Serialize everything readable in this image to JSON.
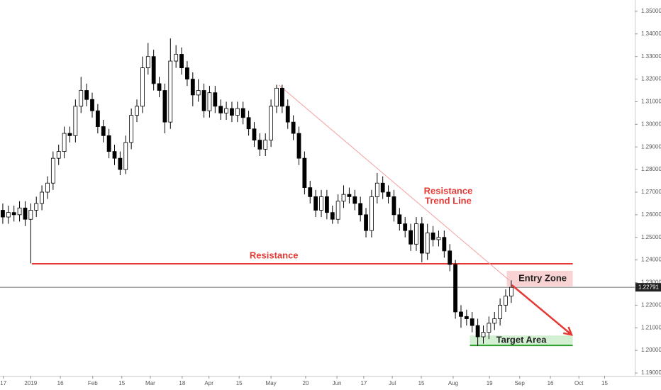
{
  "chart_data": {
    "type": "candlestick",
    "xlim": [
      0,
      113.6
    ],
    "ylim": [
      1.18875,
      1.355
    ],
    "xticks": [
      {
        "value": 0.6,
        "label": "17"
      },
      {
        "value": 5.5,
        "label": "2019"
      },
      {
        "value": 10.8,
        "label": "16"
      },
      {
        "value": 16.6,
        "label": "Feb"
      },
      {
        "value": 21.8,
        "label": "15"
      },
      {
        "value": 26.9,
        "label": "Mar"
      },
      {
        "value": 32.6,
        "label": "18"
      },
      {
        "value": 37.4,
        "label": "Apr"
      },
      {
        "value": 42.8,
        "label": "15"
      },
      {
        "value": 48.5,
        "label": "May"
      },
      {
        "value": 54.7,
        "label": "20"
      },
      {
        "value": 60.3,
        "label": "Jun"
      },
      {
        "value": 65.1,
        "label": "17"
      },
      {
        "value": 70.2,
        "label": "Jul"
      },
      {
        "value": 75.4,
        "label": "15"
      },
      {
        "value": 81.1,
        "label": "Aug"
      },
      {
        "value": 87.6,
        "label": "19"
      },
      {
        "value": 93.0,
        "label": "Sep"
      },
      {
        "value": 98.5,
        "label": "16"
      },
      {
        "value": 103.6,
        "label": "Oct"
      },
      {
        "value": 108.2,
        "label": "15"
      }
    ],
    "yticks": [
      {
        "value": 1.19,
        "label": "1.19000"
      },
      {
        "value": 1.2,
        "label": "1.20000"
      },
      {
        "value": 1.21,
        "label": "1.21000"
      },
      {
        "value": 1.22,
        "label": "1.22000"
      },
      {
        "value": 1.23,
        "label": "1.23000"
      },
      {
        "value": 1.24,
        "label": "1.24000"
      },
      {
        "value": 1.25,
        "label": "1.25000"
      },
      {
        "value": 1.26,
        "label": "1.26000"
      },
      {
        "value": 1.27,
        "label": "1.27000"
      },
      {
        "value": 1.28,
        "label": "1.28000"
      },
      {
        "value": 1.29,
        "label": "1.29000"
      },
      {
        "value": 1.3,
        "label": "1.30000"
      },
      {
        "value": 1.31,
        "label": "1.31000"
      },
      {
        "value": 1.32,
        "label": "1.32000"
      },
      {
        "value": 1.33,
        "label": "1.33000"
      },
      {
        "value": 1.34,
        "label": "1.34000"
      },
      {
        "value": 1.35,
        "label": "1.35000"
      }
    ],
    "up_color": "#ffffff",
    "down_color": "#000000",
    "x": [
      0.5,
      1.5,
      2.5,
      3.5,
      4.5,
      5.5,
      6.5,
      7.5,
      8.5,
      9.5,
      10.5,
      11.5,
      12.5,
      13.5,
      14.5,
      15.5,
      16.5,
      17.5,
      18.5,
      19.5,
      20.5,
      21.5,
      22.5,
      23.5,
      24.5,
      25.5,
      26.5,
      27.5,
      28.5,
      29.5,
      30.5,
      31.5,
      32.5,
      33.5,
      34.5,
      35.5,
      36.5,
      37.5,
      38.5,
      39.5,
      40.5,
      41.5,
      42.5,
      43.5,
      44.5,
      45.5,
      46.5,
      47.5,
      48.5,
      49.5,
      50.5,
      51.5,
      52.5,
      53.5,
      54.5,
      55.5,
      56.5,
      57.5,
      58.5,
      59.5,
      60.5,
      61.5,
      62.5,
      63.5,
      64.5,
      65.5,
      66.5,
      67.5,
      68.5,
      69.5,
      70.5,
      71.5,
      72.5,
      73.5,
      74.5,
      75.5,
      76.5,
      77.5,
      78.5,
      79.5,
      80.5,
      81.5,
      82.5,
      83.5,
      84.5,
      85.5,
      86.5,
      87.5,
      88.5,
      89.5,
      90.5,
      91.5
    ],
    "open": [
      1.262,
      1.259,
      1.261,
      1.26,
      1.263,
      1.258,
      1.262,
      1.265,
      1.27,
      1.274,
      1.285,
      1.288,
      1.296,
      1.295,
      1.308,
      1.315,
      1.311,
      1.306,
      1.299,
      1.295,
      1.288,
      1.285,
      1.28,
      1.292,
      1.304,
      1.308,
      1.325,
      1.33,
      1.318,
      1.315,
      1.301,
      1.328,
      1.331,
      1.325,
      1.32,
      1.313,
      1.315,
      1.306,
      1.314,
      1.308,
      1.305,
      1.307,
      1.304,
      1.307,
      1.303,
      1.298,
      1.293,
      1.289,
      1.293,
      1.308,
      1.316,
      1.308,
      1.301,
      1.296,
      1.285,
      1.272,
      1.268,
      1.262,
      1.268,
      1.261,
      1.258,
      1.266,
      1.269,
      1.268,
      1.265,
      1.26,
      1.253,
      1.268,
      1.274,
      1.27,
      1.268,
      1.26,
      1.256,
      1.253,
      1.247,
      1.256,
      1.243,
      1.252,
      1.249,
      1.25,
      1.244,
      1.238,
      1.217,
      1.215,
      1.214,
      1.211,
      1.206,
      1.208,
      1.212,
      1.214,
      1.22,
      1.224
    ],
    "high": [
      1.265,
      1.264,
      1.264,
      1.266,
      1.266,
      1.265,
      1.268,
      1.273,
      1.277,
      1.288,
      1.291,
      1.299,
      1.299,
      1.311,
      1.321,
      1.318,
      1.314,
      1.309,
      1.302,
      1.298,
      1.291,
      1.288,
      1.295,
      1.307,
      1.311,
      1.33,
      1.336,
      1.333,
      1.321,
      1.318,
      1.338,
      1.335,
      1.334,
      1.328,
      1.323,
      1.32,
      1.318,
      1.317,
      1.317,
      1.311,
      1.31,
      1.31,
      1.31,
      1.31,
      1.306,
      1.301,
      1.296,
      1.296,
      1.311,
      1.3175,
      1.3175,
      1.311,
      1.304,
      1.299,
      1.288,
      1.275,
      1.271,
      1.271,
      1.271,
      1.264,
      1.269,
      1.273,
      1.272,
      1.271,
      1.268,
      1.263,
      1.271,
      1.2785,
      1.277,
      1.273,
      1.271,
      1.263,
      1.259,
      1.256,
      1.259,
      1.259,
      1.256,
      1.255,
      1.253,
      1.253,
      1.247,
      1.24,
      1.22,
      1.218,
      1.217,
      1.214,
      1.211,
      1.215,
      1.217,
      1.223,
      1.227,
      1.231
    ],
    "low": [
      1.256,
      1.256,
      1.257,
      1.257,
      1.255,
      1.2385,
      1.259,
      1.262,
      1.267,
      1.271,
      1.282,
      1.285,
      1.292,
      1.292,
      1.305,
      1.308,
      1.303,
      1.296,
      1.292,
      1.285,
      1.282,
      1.2775,
      1.278,
      1.289,
      1.301,
      1.305,
      1.322,
      1.315,
      1.312,
      1.296,
      1.298,
      1.325,
      1.322,
      1.317,
      1.308,
      1.31,
      1.303,
      1.303,
      1.305,
      1.302,
      1.302,
      1.301,
      1.301,
      1.3,
      1.295,
      1.29,
      1.286,
      1.286,
      1.29,
      1.305,
      1.305,
      1.298,
      1.293,
      1.282,
      1.269,
      1.265,
      1.259,
      1.259,
      1.258,
      1.256,
      1.256,
      1.263,
      1.265,
      1.262,
      1.257,
      1.25,
      1.25,
      1.265,
      1.267,
      1.265,
      1.257,
      1.253,
      1.25,
      1.244,
      1.244,
      1.239,
      1.24,
      1.246,
      1.246,
      1.241,
      1.235,
      1.214,
      1.21,
      1.211,
      1.208,
      1.202,
      1.203,
      1.205,
      1.209,
      1.211,
      1.217,
      1.221
    ],
    "close": [
      1.259,
      1.261,
      1.26,
      1.263,
      1.258,
      1.262,
      1.265,
      1.27,
      1.274,
      1.285,
      1.288,
      1.296,
      1.295,
      1.308,
      1.315,
      1.311,
      1.306,
      1.299,
      1.295,
      1.288,
      1.285,
      1.28,
      1.292,
      1.304,
      1.308,
      1.325,
      1.33,
      1.318,
      1.315,
      1.301,
      1.328,
      1.331,
      1.325,
      1.32,
      1.313,
      1.315,
      1.306,
      1.314,
      1.308,
      1.305,
      1.307,
      1.304,
      1.307,
      1.303,
      1.298,
      1.293,
      1.289,
      1.293,
      1.308,
      1.316,
      1.308,
      1.301,
      1.296,
      1.285,
      1.272,
      1.268,
      1.262,
      1.268,
      1.261,
      1.258,
      1.266,
      1.269,
      1.268,
      1.265,
      1.26,
      1.253,
      1.268,
      1.274,
      1.27,
      1.268,
      1.26,
      1.256,
      1.253,
      1.247,
      1.256,
      1.243,
      1.252,
      1.249,
      1.25,
      1.244,
      1.238,
      1.217,
      1.215,
      1.214,
      1.211,
      1.206,
      1.208,
      1.212,
      1.214,
      1.22,
      1.224,
      1.2279
    ],
    "last_price": 1.22791,
    "resistance": {
      "label": "Resistance",
      "price": 1.2383,
      "x": [
        5.7,
        102.5
      ],
      "color": "#e53935"
    },
    "trend_line": {
      "label": [
        "Resistance",
        "Trend Line"
      ],
      "x": [
        49.9,
        91.1
      ],
      "price": [
        1.3174,
        1.2311
      ],
      "color": "#f4a0a0"
    },
    "entry_zone": {
      "label": "Entry Zone",
      "x": [
        90.7,
        102.5
      ],
      "price": [
        1.2283,
        1.2352
      ],
      "color": "#f9d3d3"
    },
    "target_area": {
      "label": "Target Area",
      "x": [
        84.1,
        102.5
      ],
      "price": [
        1.2022,
        1.2066
      ],
      "color": "#d3f0d3",
      "line_color": "#2e9e2e"
    },
    "arrow": {
      "x": [
        91.6,
        102.3
      ],
      "price": [
        1.2289,
        1.2069
      ],
      "color": "#e53935"
    }
  }
}
